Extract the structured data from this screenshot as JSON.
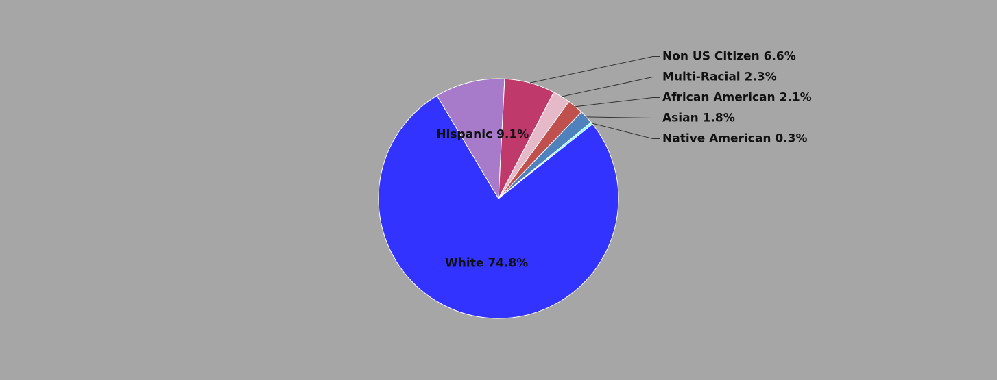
{
  "chart_data": {
    "type": "pie",
    "categories": [
      "White",
      "Hispanic",
      "Non US Citizen",
      "Multi-Racial",
      "African American",
      "Asian",
      "Native American"
    ],
    "values": [
      74.8,
      9.1,
      6.6,
      2.3,
      2.1,
      1.8,
      0.3
    ],
    "value_labels": [
      "74.8%",
      "9.1%",
      "6.6%",
      "2.3%",
      "2.1%",
      "1.8%",
      "0.3%"
    ],
    "colors": [
      "#3333ff",
      "#a77bca",
      "#c0396b",
      "#e6b9c8",
      "#c0504d",
      "#4f81bd",
      "#80ffff"
    ]
  }
}
